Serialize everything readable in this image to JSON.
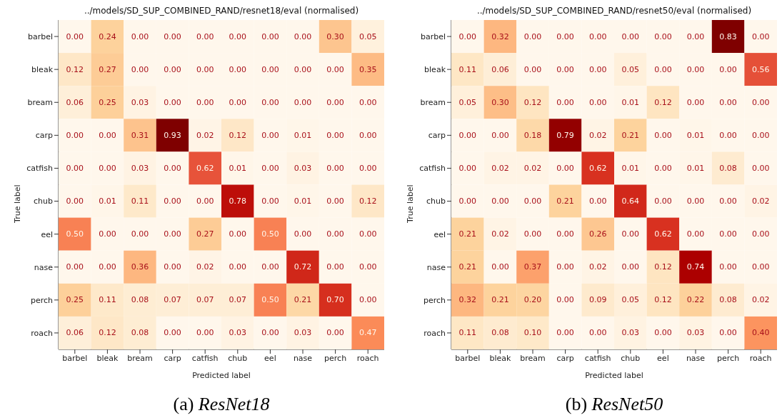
{
  "chart_data": [
    {
      "type": "heatmap",
      "title": "../models/SD_SUP_COMBINED_RAND/resnet18/eval (normalised)",
      "xlabel": "Predicted label",
      "ylabel": "True label",
      "categories": [
        "barbel",
        "bleak",
        "bream",
        "carp",
        "catfish",
        "chub",
        "eel",
        "nase",
        "perch",
        "roach"
      ],
      "y_categories": [
        "barbel",
        "bleak",
        "bream",
        "carp",
        "catfish",
        "chub",
        "eel",
        "nase",
        "perch",
        "roach"
      ],
      "cells": [
        [
          0,
          0.24,
          0,
          0,
          0,
          0,
          0,
          0,
          0.3,
          0.05
        ],
        [
          0.12,
          0.27,
          0,
          0,
          0,
          0,
          0,
          0,
          0,
          0.35
        ],
        [
          0.06,
          0.25,
          0.03,
          0,
          0,
          0,
          0,
          0,
          0,
          0
        ],
        [
          0,
          0,
          0.31,
          0.93,
          0.02,
          0.12,
          0,
          0.01,
          0,
          0
        ],
        [
          0,
          0,
          0.03,
          0,
          0.62,
          0.01,
          0,
          0.03,
          0,
          0
        ],
        [
          0,
          0.01,
          0.11,
          0,
          0,
          0.78,
          0,
          0.01,
          0,
          0.12
        ],
        [
          0.5,
          0,
          0,
          0,
          0.27,
          0,
          0.5,
          0,
          0,
          0
        ],
        [
          0,
          0,
          0.36,
          0,
          0.02,
          0,
          0,
          0.72,
          0,
          0
        ],
        [
          0.25,
          0.11,
          0.08,
          0.07,
          0.07,
          0.07,
          0.5,
          0.21,
          0.7,
          0
        ],
        [
          0.06,
          0.12,
          0.08,
          0,
          0,
          0.03,
          0,
          0.03,
          0,
          0.47
        ]
      ],
      "cell_labels": [
        [
          "0.00",
          "0.24",
          "0.00",
          "0.00",
          "0.00",
          "0.00",
          "0.00",
          "0.00",
          "0.30",
          "0.05"
        ],
        [
          "0.12",
          "0.27",
          "0.00",
          "0.00",
          "0.00",
          "0.00",
          "0.00",
          "0.00",
          "0.00",
          "0.35"
        ],
        [
          "0.06",
          "0.25",
          "0.03",
          "0.00",
          "0.00",
          "0.00",
          "0.00",
          "0.00",
          "0.00",
          "0.00"
        ],
        [
          "0.00",
          "0.00",
          "0.31",
          "0.93",
          "0.02",
          "0.12",
          "0.00",
          "0.01",
          "0.00",
          "0.00"
        ],
        [
          "0.00",
          "0.00",
          "0.03",
          "0.00",
          "0.62",
          "0.01",
          "0.00",
          "0.03",
          "0.00",
          "0.00"
        ],
        [
          "0.00",
          "0.01",
          "0.11",
          "0.00",
          "0.00",
          "0.78",
          "0.00",
          "0.01",
          "0.00",
          "0.12"
        ],
        [
          "0.50",
          "0.00",
          "0.00",
          "0.00",
          "0.27",
          "0.00",
          "0.50",
          "0.00",
          "0.00",
          "0.00"
        ],
        [
          "0.00",
          "0.00",
          "0.36",
          "0.00",
          "0.02",
          "0.00",
          "0.00",
          "0.72",
          "0.00",
          "0.00"
        ],
        [
          "0.25",
          "0.11",
          "0.08",
          "0.07",
          "0.07",
          "0.07",
          "0.50",
          "0.21",
          "0.70",
          "0.00"
        ],
        [
          "0.06",
          "0.12",
          "0.08",
          "0.00",
          "0.00",
          "0.03",
          "0.00",
          "0.03",
          "0.00",
          "0.47"
        ]
      ],
      "annotations": [
        "(a) ResNet18"
      ]
    },
    {
      "type": "heatmap",
      "title": "../models/SD_SUP_COMBINED_RAND/resnet50/eval (normalised)",
      "xlabel": "Predicted label",
      "ylabel": "True label",
      "categories": [
        "barbel",
        "bleak",
        "bream",
        "carp",
        "catfish",
        "chub",
        "eel",
        "nase",
        "perch",
        "roach"
      ],
      "y_categories": [
        "barbel",
        "bleak",
        "bream",
        "carp",
        "catfish",
        "chub",
        "eel",
        "nase",
        "perch",
        "roach"
      ],
      "cells": [
        [
          0,
          0.32,
          0,
          0,
          0,
          0,
          0,
          0,
          0.83,
          0
        ],
        [
          0.11,
          0.06,
          0,
          0,
          0,
          0.05,
          0,
          0,
          0,
          0.56
        ],
        [
          0.05,
          0.3,
          0.12,
          0,
          0,
          0.01,
          0.12,
          0,
          0,
          0
        ],
        [
          0,
          0,
          0.18,
          0.79,
          0.02,
          0.21,
          0,
          0.01,
          0,
          0
        ],
        [
          0,
          0.02,
          0.02,
          0,
          0.62,
          0.01,
          0,
          0.01,
          0.08,
          0
        ],
        [
          0,
          0,
          0,
          0.21,
          0,
          0.64,
          0,
          0,
          0,
          0.02
        ],
        [
          0.21,
          0.02,
          0,
          0,
          0.26,
          0,
          0.62,
          0,
          0,
          0
        ],
        [
          0.21,
          0,
          0.37,
          0,
          0.02,
          0,
          0.12,
          0.74,
          0,
          0
        ],
        [
          0.32,
          0.21,
          0.2,
          0,
          0.09,
          0.05,
          0.12,
          0.22,
          0.08,
          0.02
        ],
        [
          0.11,
          0.08,
          0.1,
          0,
          0,
          0.03,
          0,
          0.03,
          0,
          0.4
        ]
      ],
      "cell_labels": [
        [
          "0.00",
          "0.32",
          "0.00",
          "0.00",
          "0.00",
          "0.00",
          "0.00",
          "0.00",
          "0.83",
          "0.00"
        ],
        [
          "0.11",
          "0.06",
          "0.00",
          "0.00",
          "0.00",
          "0.05",
          "0.00",
          "0.00",
          "0.00",
          "0.56"
        ],
        [
          "0.05",
          "0.30",
          "0.12",
          "0.00",
          "0.00",
          "0.01",
          "0.12",
          "0.00",
          "0.00",
          "0.00"
        ],
        [
          "0.00",
          "0.00",
          "0.18",
          "0.79",
          "0.02",
          "0.21",
          "0.00",
          "0.01",
          "0.00",
          "0.00"
        ],
        [
          "0.00",
          "0.02",
          "0.02",
          "0.00",
          "0.62",
          "0.01",
          "0.00",
          "0.01",
          "0.08",
          "0.00"
        ],
        [
          "0.00",
          "0.00",
          "0.00",
          "0.21",
          "0.00",
          "0.64",
          "0.00",
          "0.00",
          "0.00",
          "0.02"
        ],
        [
          "0.21",
          "0.02",
          "0.00",
          "0.00",
          "0.26",
          "0.00",
          "0.62",
          "0.00",
          "0.00",
          "0.00"
        ],
        [
          "0.21",
          "0.00",
          "0.37",
          "0.00",
          "0.02",
          "0.00",
          "0.12",
          "0.74",
          "0.00",
          "0.00"
        ],
        [
          "0.32",
          "0.21",
          "0.20",
          "0.00",
          "0.09",
          "0.05",
          "0.12",
          "0.22",
          "0.08",
          "0.02"
        ],
        [
          "0.11",
          "0.08",
          "0.10",
          "0.00",
          "0.00",
          "0.03",
          "0.00",
          "0.03",
          "0.00",
          "0.40"
        ]
      ],
      "annotations": [
        "(b) ResNet50"
      ]
    }
  ]
}
